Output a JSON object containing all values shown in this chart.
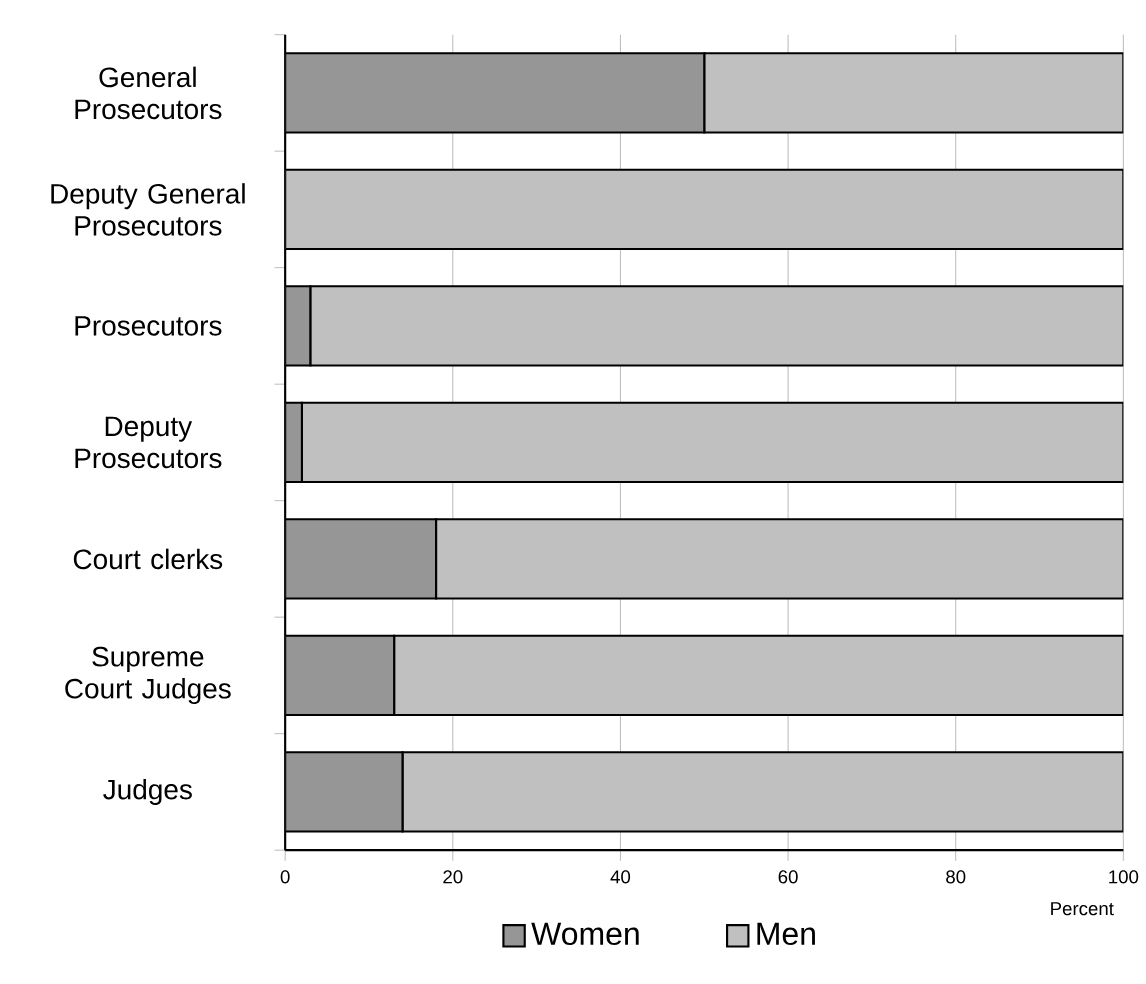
{
  "chart_data": {
    "type": "bar",
    "orientation": "horizontal",
    "stacked": true,
    "xlabel": "Percent",
    "categories": [
      "General Prosecutors",
      "Deputy General Prosecutors",
      "Prosecutors",
      "Deputy Prosecutors",
      "Court clerks",
      "Supreme Court Judges",
      "Judges"
    ],
    "series": [
      {
        "name": "Women",
        "color": "#969696",
        "values": [
          50,
          0,
          3,
          2,
          18,
          13,
          14
        ]
      },
      {
        "name": "Men",
        "color": "#c0c0c0",
        "values": [
          50,
          100,
          97,
          98,
          82,
          87,
          86
        ]
      }
    ],
    "xlim": [
      0,
      100
    ],
    "xticks": [
      0,
      20,
      40,
      60,
      80,
      100
    ],
    "grid": "x",
    "legend": "bottom"
  }
}
